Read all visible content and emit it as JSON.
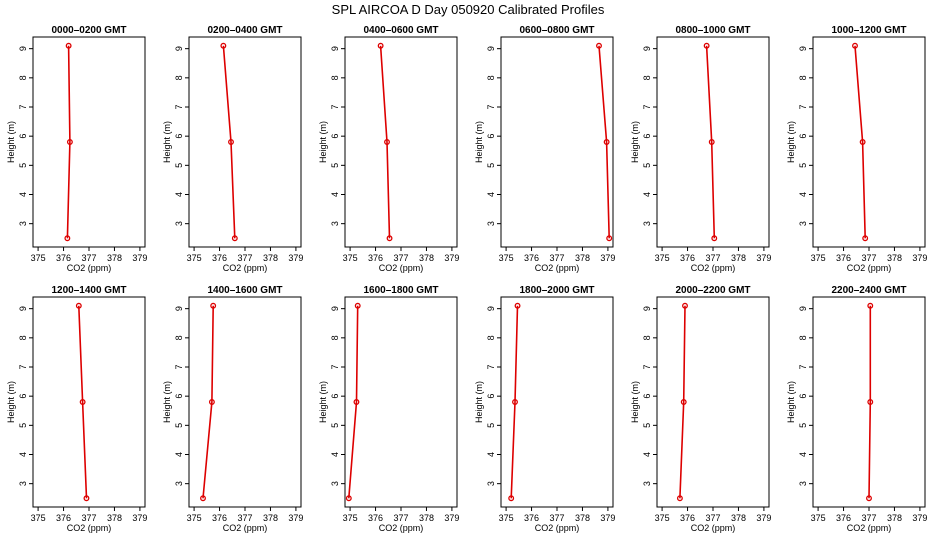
{
  "figure": {
    "title": "SPL AIRCOA D  Day 050920  Calibrated Profiles"
  },
  "colors": {
    "series": "#dd0000",
    "axis": "#000000"
  },
  "chart_data": [
    {
      "type": "line",
      "title": "0000–0200 GMT",
      "xlabel": "CO2 (ppm)",
      "ylabel": "Height (m)",
      "xlim": [
        374.8,
        379.2
      ],
      "ylim": [
        2.2,
        9.4
      ],
      "xticks": [
        375,
        376,
        377,
        378,
        379
      ],
      "yticks": [
        3,
        4,
        5,
        6,
        7,
        8,
        9
      ],
      "series": [
        {
          "x": [
            376.15,
            376.25,
            376.2
          ],
          "y": [
            2.5,
            5.8,
            9.1
          ]
        }
      ]
    },
    {
      "type": "line",
      "title": "0200–0400 GMT",
      "xlabel": "CO2 (ppm)",
      "ylabel": "Height (m)",
      "xlim": [
        374.8,
        379.2
      ],
      "ylim": [
        2.2,
        9.4
      ],
      "xticks": [
        375,
        376,
        377,
        378,
        379
      ],
      "yticks": [
        3,
        4,
        5,
        6,
        7,
        8,
        9
      ],
      "series": [
        {
          "x": [
            376.6,
            376.45,
            376.15
          ],
          "y": [
            2.5,
            5.8,
            9.1
          ]
        }
      ]
    },
    {
      "type": "line",
      "title": "0400–0600 GMT",
      "xlabel": "CO2 (ppm)",
      "ylabel": "Height (m)",
      "xlim": [
        374.8,
        379.2
      ],
      "ylim": [
        2.2,
        9.4
      ],
      "xticks": [
        375,
        376,
        377,
        378,
        379
      ],
      "yticks": [
        3,
        4,
        5,
        6,
        7,
        8,
        9
      ],
      "series": [
        {
          "x": [
            376.55,
            376.45,
            376.2
          ],
          "y": [
            2.5,
            5.8,
            9.1
          ]
        }
      ]
    },
    {
      "type": "line",
      "title": "0600–0800 GMT",
      "xlabel": "CO2 (ppm)",
      "ylabel": "Height (m)",
      "xlim": [
        374.8,
        379.2
      ],
      "ylim": [
        2.2,
        9.4
      ],
      "xticks": [
        375,
        376,
        377,
        378,
        379
      ],
      "yticks": [
        3,
        4,
        5,
        6,
        7,
        8,
        9
      ],
      "series": [
        {
          "x": [
            379.05,
            378.95,
            378.65
          ],
          "y": [
            2.5,
            5.8,
            9.1
          ]
        }
      ]
    },
    {
      "type": "line",
      "title": "0800–1000 GMT",
      "xlabel": "CO2 (ppm)",
      "ylabel": "Height (m)",
      "xlim": [
        374.8,
        379.2
      ],
      "ylim": [
        2.2,
        9.4
      ],
      "xticks": [
        375,
        376,
        377,
        378,
        379
      ],
      "yticks": [
        3,
        4,
        5,
        6,
        7,
        8,
        9
      ],
      "series": [
        {
          "x": [
            377.05,
            376.95,
            376.75
          ],
          "y": [
            2.5,
            5.8,
            9.1
          ]
        }
      ]
    },
    {
      "type": "line",
      "title": "1000–1200 GMT",
      "xlabel": "CO2 (ppm)",
      "ylabel": "Height (m)",
      "xlim": [
        374.8,
        379.2
      ],
      "ylim": [
        2.2,
        9.4
      ],
      "xticks": [
        375,
        376,
        377,
        378,
        379
      ],
      "yticks": [
        3,
        4,
        5,
        6,
        7,
        8,
        9
      ],
      "series": [
        {
          "x": [
            376.85,
            376.75,
            376.45
          ],
          "y": [
            2.5,
            5.8,
            9.1
          ]
        }
      ]
    },
    {
      "type": "line",
      "title": "1200–1400 GMT",
      "xlabel": "CO2 (ppm)",
      "ylabel": "Height (m)",
      "xlim": [
        374.8,
        379.2
      ],
      "ylim": [
        2.2,
        9.4
      ],
      "xticks": [
        375,
        376,
        377,
        378,
        379
      ],
      "yticks": [
        3,
        4,
        5,
        6,
        7,
        8,
        9
      ],
      "series": [
        {
          "x": [
            376.9,
            376.75,
            376.6
          ],
          "y": [
            2.5,
            5.8,
            9.1
          ]
        }
      ]
    },
    {
      "type": "line",
      "title": "1400–1600 GMT",
      "xlabel": "CO2 (ppm)",
      "ylabel": "Height (m)",
      "xlim": [
        374.8,
        379.2
      ],
      "ylim": [
        2.2,
        9.4
      ],
      "xticks": [
        375,
        376,
        377,
        378,
        379
      ],
      "yticks": [
        3,
        4,
        5,
        6,
        7,
        8,
        9
      ],
      "series": [
        {
          "x": [
            375.35,
            375.7,
            375.75
          ],
          "y": [
            2.5,
            5.8,
            9.1
          ]
        }
      ]
    },
    {
      "type": "line",
      "title": "1600–1800 GMT",
      "xlabel": "CO2 (ppm)",
      "ylabel": "Height (m)",
      "xlim": [
        374.8,
        379.2
      ],
      "ylim": [
        2.2,
        9.4
      ],
      "xticks": [
        375,
        376,
        377,
        378,
        379
      ],
      "yticks": [
        3,
        4,
        5,
        6,
        7,
        8,
        9
      ],
      "series": [
        {
          "x": [
            374.95,
            375.25,
            375.3
          ],
          "y": [
            2.5,
            5.8,
            9.1
          ]
        }
      ]
    },
    {
      "type": "line",
      "title": "1800–2000 GMT",
      "xlabel": "CO2 (ppm)",
      "ylabel": "Height (m)",
      "xlim": [
        374.8,
        379.2
      ],
      "ylim": [
        2.2,
        9.4
      ],
      "xticks": [
        375,
        376,
        377,
        378,
        379
      ],
      "yticks": [
        3,
        4,
        5,
        6,
        7,
        8,
        9
      ],
      "series": [
        {
          "x": [
            375.2,
            375.35,
            375.45
          ],
          "y": [
            2.5,
            5.8,
            9.1
          ]
        }
      ]
    },
    {
      "type": "line",
      "title": "2000–2200 GMT",
      "xlabel": "CO2 (ppm)",
      "ylabel": "Height (m)",
      "xlim": [
        374.8,
        379.2
      ],
      "ylim": [
        2.2,
        9.4
      ],
      "xticks": [
        375,
        376,
        377,
        378,
        379
      ],
      "yticks": [
        3,
        4,
        5,
        6,
        7,
        8,
        9
      ],
      "series": [
        {
          "x": [
            375.7,
            375.85,
            375.9
          ],
          "y": [
            2.5,
            5.8,
            9.1
          ]
        }
      ]
    },
    {
      "type": "line",
      "title": "2200–2400 GMT",
      "xlabel": "CO2 (ppm)",
      "ylabel": "Height (m)",
      "xlim": [
        374.8,
        379.2
      ],
      "ylim": [
        2.2,
        9.4
      ],
      "xticks": [
        375,
        376,
        377,
        378,
        379
      ],
      "yticks": [
        3,
        4,
        5,
        6,
        7,
        8,
        9
      ],
      "series": [
        {
          "x": [
            377.0,
            377.05,
            377.05
          ],
          "y": [
            2.5,
            5.8,
            9.1
          ]
        }
      ]
    }
  ]
}
